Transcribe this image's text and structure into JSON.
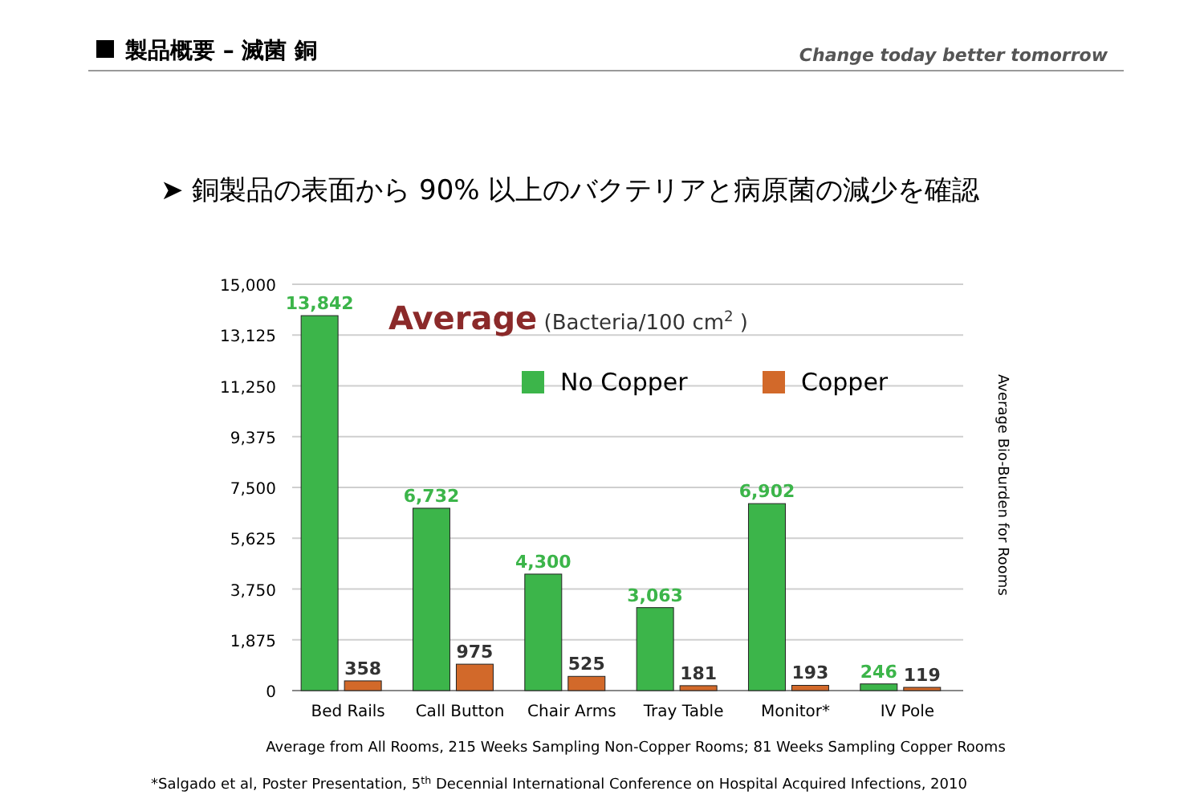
{
  "chart_data": {
    "type": "bar",
    "title": "製品概要 – 滅菌 銅",
    "subtitle": "➤ 銅製品の表面から 90% 以上のバクテリアと病原菌の減少を確認",
    "categories": [
      "Bed Rails",
      "Call Button",
      "Chair Arms",
      "Tray Table",
      "Monitor*",
      "IV Pole"
    ],
    "series": [
      {
        "name": "No Copper",
        "color": "#3cb54a",
        "values": [
          13842,
          6732,
          4300,
          3063,
          6902,
          246
        ],
        "value_labels": [
          "13,842",
          "6,732",
          "4,300",
          "3,063",
          "6,902",
          "246"
        ]
      },
      {
        "name": "Copper",
        "color": "#d2692a",
        "values": [
          358,
          975,
          525,
          181,
          193,
          119
        ],
        "value_labels": [
          "358",
          "975",
          "525",
          "181",
          "193",
          "119"
        ]
      }
    ],
    "ylim": [
      0,
      15000
    ],
    "yticks": [
      0,
      {
        "value": 1875,
        "label": "1,875"
      },
      {
        "value": 3750,
        "label": "3,750"
      },
      {
        "value": 5625,
        "label": "5,625"
      },
      {
        "value": 7500,
        "label": "7,500"
      },
      {
        "value": 9375,
        "label": "9,375"
      },
      {
        "value": 11250,
        "label": "11,250"
      },
      {
        "value": 13125,
        "label": "13,125"
      },
      {
        "value": 15000,
        "label": "15,000"
      }
    ],
    "grid": "y",
    "legend": "top right",
    "xlabel": "Average from All Rooms, 215 Weeks Sampling Non-Copper Rooms; 81 Weeks Sampling Copper Rooms",
    "ylabel": "Average Bio-Burden for Rooms",
    "annotations": [
      "**Average** (Bacteria/100 cm$^{2}$ )",
      "Change today  better tomorrow",
      "*Salgado et al, Poster Presentation, 5$^{th}$ Decennial International Conference on Hospital Acquired Infections, 2010"
    ]
  }
}
